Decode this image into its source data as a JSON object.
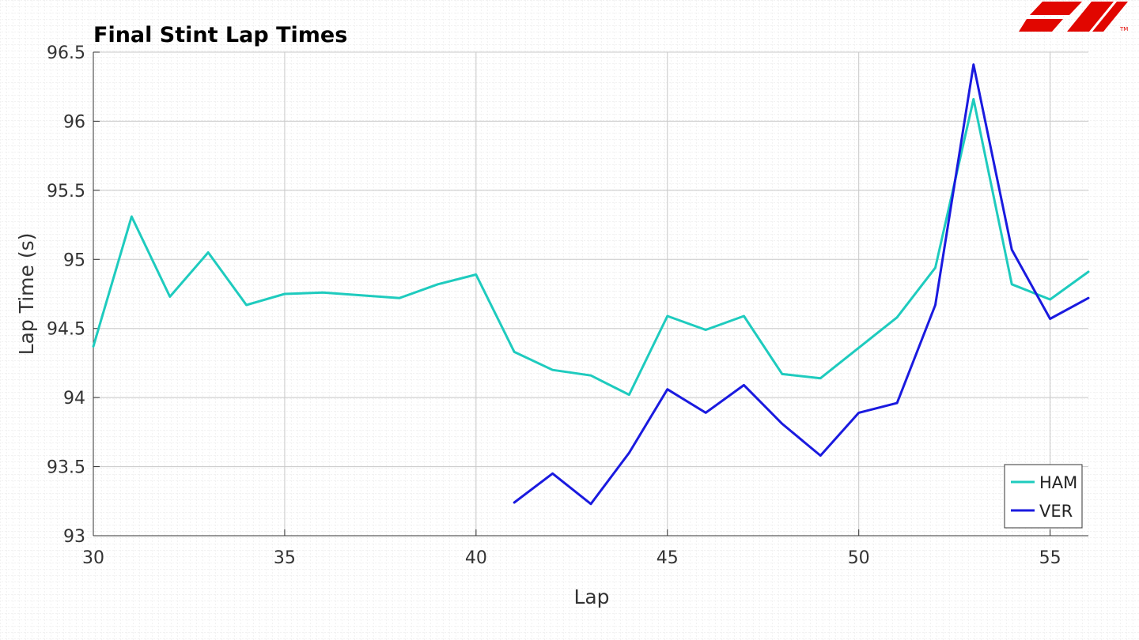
{
  "chart_data": {
    "type": "line",
    "title": "Final Stint Lap Times",
    "xlabel": "Lap",
    "ylabel": "Lap Time (s)",
    "xlim": [
      30,
      56
    ],
    "ylim": [
      93,
      96.5
    ],
    "xticks": [
      30,
      35,
      40,
      45,
      50,
      55
    ],
    "yticks": [
      93,
      93.5,
      94,
      94.5,
      95,
      95.5,
      96,
      96.5
    ],
    "xtick_labels": [
      "30",
      "35",
      "40",
      "45",
      "50",
      "55"
    ],
    "ytick_labels": [
      "93",
      "93.5",
      "94",
      "94.5",
      "95",
      "95.5",
      "96",
      "96.5"
    ],
    "grid": true,
    "legend_position": "bottom-right",
    "series": [
      {
        "name": "HAM",
        "color": "#1ecbbe",
        "x": [
          30,
          31,
          32,
          33,
          34,
          35,
          36,
          37,
          38,
          39,
          40,
          41,
          42,
          43,
          44,
          45,
          46,
          47,
          48,
          49,
          50,
          51,
          52,
          53,
          54,
          55,
          56
        ],
        "y": [
          94.37,
          95.31,
          94.73,
          95.05,
          94.67,
          94.75,
          94.76,
          94.74,
          94.72,
          94.82,
          94.89,
          94.33,
          94.2,
          94.16,
          94.02,
          94.59,
          94.49,
          94.59,
          94.17,
          94.14,
          94.36,
          94.58,
          94.94,
          96.16,
          94.82,
          94.71,
          94.91
        ]
      },
      {
        "name": "VER",
        "color": "#1a1adf",
        "x": [
          41,
          42,
          43,
          44,
          45,
          46,
          47,
          48,
          49,
          50,
          51,
          52,
          53,
          54,
          55,
          56
        ],
        "y": [
          93.24,
          93.45,
          93.23,
          93.6,
          94.06,
          93.89,
          94.09,
          93.81,
          93.58,
          93.89,
          93.96,
          94.67,
          96.41,
          95.07,
          94.57,
          94.72
        ]
      }
    ]
  },
  "branding": {
    "logo_icon": "f1-logo-icon",
    "logo_text": "F1",
    "logo_color": "#e10600"
  }
}
